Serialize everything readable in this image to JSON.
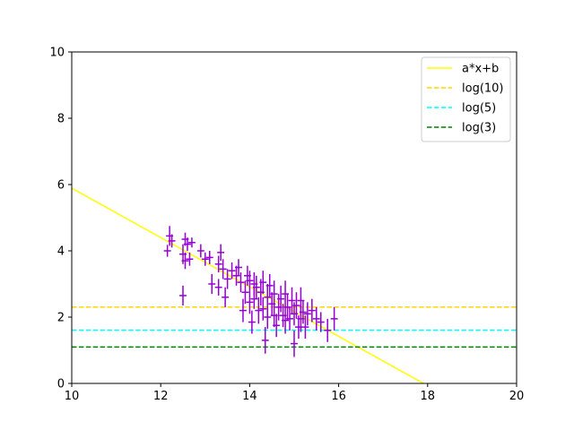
{
  "chart_data": {
    "type": "scatter",
    "title": "",
    "xlabel": "",
    "ylabel": "",
    "xlim": [
      10,
      20
    ],
    "ylim": [
      0,
      10
    ],
    "xticks": [
      10,
      12,
      14,
      16,
      18,
      20
    ],
    "yticks": [
      0,
      2,
      4,
      6,
      8,
      10
    ],
    "grid": false,
    "legend_position": "top-right",
    "series": [
      {
        "name": "",
        "kind": "errorbar",
        "color": "#9400d3",
        "points": [
          [
            12.15,
            4.0,
            0.18,
            0.08
          ],
          [
            12.2,
            4.45,
            0.3,
            0.08
          ],
          [
            12.25,
            4.3,
            0.2,
            0.08
          ],
          [
            12.5,
            3.9,
            0.3,
            0.08
          ],
          [
            12.5,
            2.65,
            0.3,
            0.08
          ],
          [
            12.55,
            3.7,
            0.25,
            0.08
          ],
          [
            12.55,
            4.35,
            0.2,
            0.08
          ],
          [
            12.6,
            4.2,
            0.2,
            0.08
          ],
          [
            12.65,
            3.75,
            0.2,
            0.08
          ],
          [
            12.7,
            4.25,
            0.15,
            0.08
          ],
          [
            12.9,
            4.0,
            0.2,
            0.08
          ],
          [
            13.0,
            3.75,
            0.2,
            0.08
          ],
          [
            13.1,
            3.8,
            0.2,
            0.08
          ],
          [
            13.15,
            3.0,
            0.3,
            0.08
          ],
          [
            13.3,
            3.6,
            0.25,
            0.08
          ],
          [
            13.3,
            2.9,
            0.25,
            0.08
          ],
          [
            13.35,
            3.95,
            0.25,
            0.08
          ],
          [
            13.4,
            3.45,
            0.3,
            0.08
          ],
          [
            13.45,
            2.6,
            0.3,
            0.08
          ],
          [
            13.5,
            3.15,
            0.3,
            0.08
          ],
          [
            13.6,
            3.4,
            0.25,
            0.08
          ],
          [
            13.7,
            3.25,
            0.3,
            0.08
          ],
          [
            13.75,
            3.5,
            0.25,
            0.08
          ],
          [
            13.8,
            3.05,
            0.3,
            0.08
          ],
          [
            13.85,
            2.2,
            0.35,
            0.08
          ],
          [
            13.9,
            2.75,
            0.35,
            0.08
          ],
          [
            13.95,
            3.25,
            0.3,
            0.08
          ],
          [
            14.0,
            3.1,
            0.3,
            0.08
          ],
          [
            14.0,
            2.45,
            0.35,
            0.08
          ],
          [
            14.05,
            1.85,
            0.35,
            0.08
          ],
          [
            14.1,
            3.0,
            0.35,
            0.08
          ],
          [
            14.1,
            2.55,
            0.3,
            0.08
          ],
          [
            14.15,
            2.9,
            0.35,
            0.08
          ],
          [
            14.2,
            2.2,
            0.4,
            0.08
          ],
          [
            14.25,
            2.75,
            0.4,
            0.08
          ],
          [
            14.3,
            3.05,
            0.35,
            0.08
          ],
          [
            14.3,
            2.25,
            0.35,
            0.08
          ],
          [
            14.35,
            1.3,
            0.4,
            0.08
          ],
          [
            14.4,
            2.6,
            0.4,
            0.08
          ],
          [
            14.4,
            2.0,
            0.35,
            0.08
          ],
          [
            14.45,
            2.95,
            0.35,
            0.08
          ],
          [
            14.5,
            2.4,
            0.35,
            0.08
          ],
          [
            14.55,
            2.7,
            0.4,
            0.08
          ],
          [
            14.55,
            2.05,
            0.35,
            0.08
          ],
          [
            14.6,
            1.75,
            0.35,
            0.08
          ],
          [
            14.65,
            2.3,
            0.4,
            0.08
          ],
          [
            14.7,
            2.55,
            0.4,
            0.08
          ],
          [
            14.75,
            2.05,
            0.35,
            0.08
          ],
          [
            14.8,
            2.7,
            0.4,
            0.08
          ],
          [
            14.8,
            1.9,
            0.4,
            0.08
          ],
          [
            14.85,
            2.3,
            0.4,
            0.08
          ],
          [
            14.9,
            1.95,
            0.35,
            0.08
          ],
          [
            14.95,
            2.5,
            0.4,
            0.08
          ],
          [
            15.0,
            1.2,
            0.4,
            0.08
          ],
          [
            15.0,
            2.1,
            0.35,
            0.08
          ],
          [
            15.05,
            2.35,
            0.4,
            0.08
          ],
          [
            15.1,
            1.7,
            0.35,
            0.08
          ],
          [
            15.15,
            1.95,
            0.4,
            0.08
          ],
          [
            15.15,
            2.5,
            0.4,
            0.08
          ],
          [
            15.2,
            2.15,
            0.35,
            0.08
          ],
          [
            15.25,
            1.7,
            0.35,
            0.08
          ],
          [
            15.3,
            2.1,
            0.35,
            0.08
          ],
          [
            15.4,
            2.2,
            0.35,
            0.08
          ],
          [
            15.5,
            1.95,
            0.35,
            0.08
          ],
          [
            15.6,
            1.85,
            0.3,
            0.08
          ],
          [
            15.75,
            1.6,
            0.35,
            0.08
          ],
          [
            15.9,
            1.95,
            0.35,
            0.08
          ]
        ]
      }
    ],
    "lines": [
      {
        "name": "a*x+b",
        "style": "solid",
        "color": "#ffff00",
        "slope": -0.745,
        "intercept": 13.34
      },
      {
        "name": "log(10)",
        "style": "dashed",
        "color": "#ffd700",
        "y": 2.302585
      },
      {
        "name": "log(5)",
        "style": "dashed",
        "color": "#00ffff",
        "y": 1.609438
      },
      {
        "name": "log(3)",
        "style": "dashed",
        "color": "#008000",
        "y": 1.098612
      }
    ]
  }
}
